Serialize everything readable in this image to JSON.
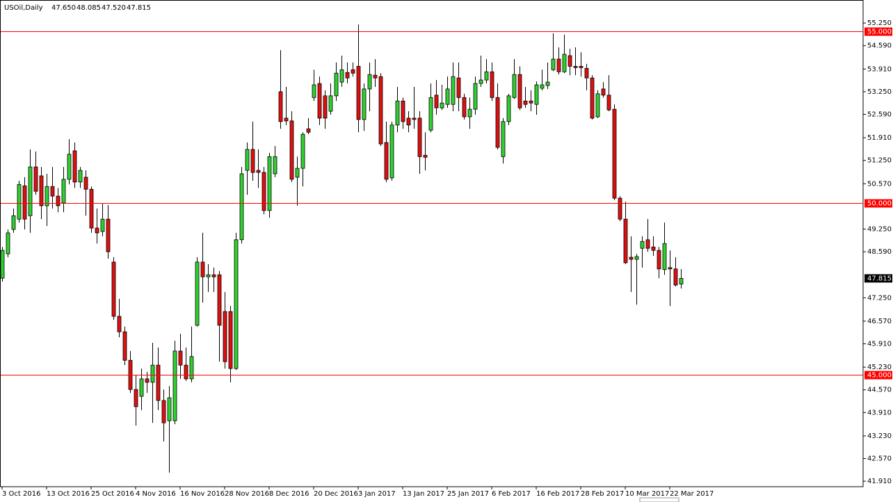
{
  "chart_data": {
    "type": "candlestick",
    "symbol": "USOil,Daily",
    "info_labels": [
      "47.650",
      "48.085",
      "47.520",
      "47.815"
    ],
    "categories": [
      "3 Oct 2016",
      null,
      null,
      null,
      null,
      null,
      null,
      null,
      "13 Oct 2016",
      null,
      null,
      null,
      null,
      null,
      null,
      null,
      "25 Oct 2016",
      null,
      null,
      null,
      null,
      null,
      null,
      null,
      "4 Nov 2016",
      null,
      null,
      null,
      null,
      null,
      null,
      null,
      "16 Nov 2016",
      null,
      null,
      null,
      null,
      null,
      null,
      null,
      "28 Nov 2016",
      null,
      null,
      null,
      null,
      null,
      null,
      null,
      "8 Dec 2016",
      null,
      null,
      null,
      null,
      null,
      null,
      null,
      "20 Dec 2016",
      null,
      null,
      null,
      null,
      null,
      null,
      null,
      "3 Jan 2017",
      null,
      null,
      null,
      null,
      null,
      null,
      null,
      "13 Jan 2017",
      null,
      null,
      null,
      null,
      null,
      null,
      null,
      "25 Jan 2017",
      null,
      null,
      null,
      null,
      null,
      null,
      null,
      "6 Feb 2017",
      null,
      null,
      null,
      null,
      null,
      null,
      null,
      "16 Feb 2017",
      null,
      null,
      null,
      null,
      null,
      null,
      null,
      "28 Feb 2017",
      null,
      null,
      null,
      null,
      null,
      null,
      null,
      "10 Mar 2017",
      null,
      null,
      null,
      null,
      null,
      null,
      null,
      "22 Mar 2017",
      null,
      null
    ],
    "open": [
      47.82,
      48.53,
      49.24,
      49.54,
      50.51,
      49.64,
      51.06,
      50.8,
      49.93,
      50.49,
      50.21,
      50.01,
      50.7,
      51.53,
      50.62,
      50.76,
      50.41,
      49.28,
      49.18,
      49.54,
      48.29,
      46.71,
      46.26,
      45.43,
      44.58,
      44.38,
      44.89,
      44.79,
      45.29,
      44.26,
      43.67,
      43.67,
      45.7,
      45.29,
      44.89,
      46.45,
      48.29,
      47.86,
      47.92,
      47.92,
      46.85,
      46.85,
      45.19,
      48.94,
      50.96,
      51.57,
      50.96,
      50.9,
      49.79,
      50.86,
      53.25,
      52.48,
      52.4,
      50.76,
      51.02,
      52.17,
      53.08,
      53.49,
      53.13,
      52.68,
      53.13,
      53.53,
      53.81,
      53.89,
      53.99,
      52.44,
      53.33,
      53.73,
      53.69,
      51.77,
      50.74,
      52.28,
      52.98,
      52.48,
      52.48,
      52.48,
      51.4,
      52.13,
      53.15,
      52.78,
      52.88,
      52.88,
      53.65,
      53.08,
      52.52,
      52.74,
      53.49,
      53.59,
      53.83,
      53.08,
      51.36,
      52.38,
      53.08,
      53.75,
      52.98,
      52.98,
      52.88,
      53.35,
      53.43,
      53.89,
      54.2,
      53.83,
      54.3,
      53.99,
      53.99,
      53.93,
      53.65,
      52.52,
      53.33,
      53.15,
      52.74,
      50.15,
      49.54,
      48.43,
      48.37,
      48.69,
      48.94,
      48.73,
      48.63,
      48.07,
      48.13,
      48.09,
      47.65
    ],
    "high": [
      48.73,
      49.24,
      49.85,
      50.66,
      50.76,
      51.57,
      51.51,
      51.06,
      50.86,
      51.06,
      50.45,
      51.06,
      51.87,
      51.77,
      51.06,
      50.96,
      50.49,
      49.85,
      49.99,
      49.95,
      48.43,
      47.22,
      46.41,
      45.7,
      44.99,
      45.19,
      45.09,
      45.94,
      45.8,
      44.58,
      44.68,
      46.0,
      46.2,
      45.8,
      46.41,
      48.43,
      49.14,
      48.23,
      48.13,
      48.03,
      47.42,
      47.01,
      49.14,
      51.06,
      51.77,
      52.38,
      51.57,
      51.06,
      51.47,
      51.67,
      54.46,
      53.39,
      52.68,
      51.36,
      52.07,
      52.48,
      53.89,
      53.69,
      53.29,
      53.49,
      54.1,
      54.3,
      54.1,
      54.1,
      55.21,
      53.49,
      54.1,
      54.2,
      53.79,
      52.38,
      52.38,
      53.39,
      53.08,
      52.68,
      53.39,
      52.68,
      52.07,
      53.49,
      53.59,
      53.45,
      53.69,
      54.1,
      54.1,
      53.19,
      53.08,
      53.69,
      54.3,
      54.2,
      54.1,
      53.49,
      52.48,
      53.19,
      54.2,
      53.99,
      53.39,
      53.29,
      53.55,
      53.89,
      54.1,
      54.95,
      54.54,
      54.91,
      54.5,
      54.54,
      54.4,
      54.06,
      53.73,
      53.29,
      53.53,
      53.73,
      52.88,
      50.21,
      50.05,
      49.04,
      48.53,
      49.04,
      49.54,
      49.04,
      48.73,
      49.44,
      48.63,
      48.43,
      48.085
    ],
    "low": [
      47.72,
      48.43,
      49.14,
      49.44,
      49.24,
      49.14,
      50.25,
      49.54,
      49.34,
      49.85,
      49.74,
      49.74,
      50.55,
      50.45,
      50.45,
      49.64,
      49.14,
      48.83,
      49.04,
      48.39,
      46.61,
      46.1,
      45.29,
      44.48,
      43.53,
      43.98,
      44.48,
      43.61,
      43.98,
      43.07,
      42.16,
      43.57,
      44.89,
      44.83,
      44.79,
      46.41,
      47.11,
      47.42,
      47.42,
      45.39,
      45.19,
      44.79,
      45.15,
      48.83,
      50.25,
      50.66,
      50.45,
      49.68,
      49.58,
      50.76,
      52.17,
      52.28,
      50.62,
      49.93,
      50.49,
      52.01,
      52.98,
      52.28,
      52.17,
      52.58,
      52.98,
      53.39,
      53.49,
      53.69,
      52.07,
      52.11,
      52.68,
      53.39,
      51.67,
      50.62,
      50.66,
      52.07,
      52.17,
      52.07,
      52.17,
      50.86,
      50.96,
      52.07,
      52.58,
      52.72,
      52.78,
      52.68,
      52.68,
      52.44,
      52.17,
      52.58,
      53.39,
      53.49,
      52.98,
      51.57,
      51.16,
      52.28,
      53.04,
      52.72,
      52.78,
      52.68,
      52.58,
      53.29,
      53.33,
      53.85,
      53.75,
      53.79,
      53.73,
      53.73,
      53.69,
      53.29,
      52.44,
      52.48,
      53.08,
      52.68,
      50.09,
      49.48,
      48.23,
      47.42,
      47.05,
      48.13,
      48.59,
      48.47,
      47.82,
      47.92,
      47.01,
      47.58,
      47.52
    ],
    "close": [
      48.63,
      49.14,
      49.64,
      50.55,
      49.54,
      51.06,
      50.35,
      49.93,
      50.49,
      50.21,
      49.93,
      50.7,
      51.43,
      50.62,
      50.96,
      50.41,
      49.28,
      49.14,
      49.54,
      48.59,
      46.71,
      46.26,
      45.43,
      44.58,
      44.08,
      44.89,
      44.79,
      45.29,
      44.26,
      43.61,
      44.34,
      45.7,
      45.29,
      44.89,
      45.54,
      48.29,
      47.86,
      47.92,
      47.86,
      46.45,
      45.39,
      45.19,
      48.94,
      50.86,
      51.57,
      50.9,
      50.9,
      49.79,
      51.36,
      51.36,
      52.38,
      52.4,
      50.7,
      51.02,
      52.01,
      52.07,
      53.45,
      52.48,
      52.48,
      53.13,
      53.79,
      53.89,
      53.65,
      53.79,
      52.44,
      53.33,
      53.75,
      53.65,
      51.73,
      50.7,
      52.28,
      52.98,
      52.38,
      52.28,
      52.44,
      51.36,
      51.34,
      53.08,
      52.78,
      52.92,
      53.33,
      53.69,
      53.08,
      52.52,
      52.74,
      53.49,
      53.59,
      53.83,
      53.08,
      51.63,
      52.38,
      53.13,
      53.75,
      52.78,
      52.88,
      52.92,
      53.45,
      53.45,
      53.53,
      54.2,
      53.83,
      54.34,
      53.99,
      53.95,
      53.95,
      53.65,
      52.48,
      53.19,
      53.15,
      52.72,
      50.15,
      49.54,
      48.27,
      48.37,
      48.45,
      48.89,
      48.69,
      48.63,
      48.09,
      48.83,
      48.09,
      47.62,
      47.815
    ],
    "up_color": "#2fd12f",
    "down_color": "#e01010",
    "level_color": "#ff0000",
    "levels": [
      {
        "value": 55,
        "label": "55.000"
      },
      {
        "value": 50,
        "label": "50.000"
      },
      {
        "value": 45,
        "label": "45.000"
      }
    ],
    "current_price": 47.815,
    "ylim": [
      41.75,
      55.92
    ],
    "yticks": [
      {
        "value": 55.25,
        "label": "55.250"
      },
      {
        "value": 54.59,
        "label": "54.590"
      },
      {
        "value": 53.91,
        "label": "53.910"
      },
      {
        "value": 53.25,
        "label": "53.250"
      },
      {
        "value": 52.59,
        "label": "52.590"
      },
      {
        "value": 51.91,
        "label": "51.910"
      },
      {
        "value": 51.25,
        "label": "51.250"
      },
      {
        "value": 50.57,
        "label": "50.570"
      },
      {
        "value": 49.25,
        "label": "49.250"
      },
      {
        "value": 48.59,
        "label": "48.590"
      },
      {
        "value": 47.25,
        "label": "47.250"
      },
      {
        "value": 46.57,
        "label": "46.570"
      },
      {
        "value": 45.91,
        "label": "45.910"
      },
      {
        "value": 45.23,
        "label": "45.230"
      },
      {
        "value": 44.57,
        "label": "44.570"
      },
      {
        "value": 43.91,
        "label": "43.910"
      },
      {
        "value": 43.23,
        "label": "43.230"
      },
      {
        "value": 42.57,
        "label": "42.570"
      },
      {
        "value": 41.91,
        "label": "41.910"
      }
    ]
  }
}
